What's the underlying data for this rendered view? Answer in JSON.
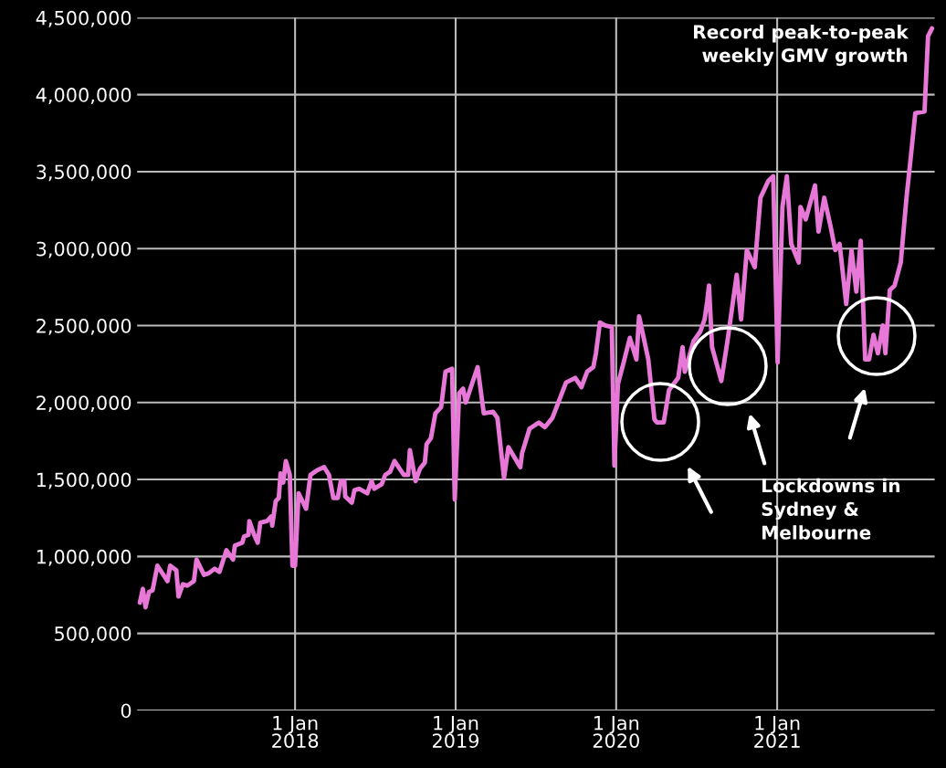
{
  "chart_data": {
    "type": "line",
    "x": [
      "2017-01-13",
      "2017-01-20",
      "2017-01-26",
      "2017-02-03",
      "2017-02-11",
      "2017-02-22",
      "2017-03-17",
      "2017-03-23",
      "2017-04-06",
      "2017-04-11",
      "2017-04-21",
      "2017-05-01",
      "2017-05-16",
      "2017-05-22",
      "2017-06-08",
      "2017-06-18",
      "2017-07-02",
      "2017-07-13",
      "2017-07-29",
      "2017-08-13",
      "2017-08-17",
      "2017-09-03",
      "2017-09-07",
      "2017-09-17",
      "2017-09-19",
      "2017-09-30",
      "2017-10-08",
      "2017-10-14",
      "2017-10-29",
      "2017-11-08",
      "2017-11-10",
      "2017-11-18",
      "2017-11-25",
      "2017-11-29",
      "2017-12-05",
      "2017-12-11",
      "2017-12-20",
      "2017-12-26",
      "2018-01-01",
      "2018-01-09",
      "2018-01-16",
      "2018-01-26",
      "2018-02-05",
      "2018-02-20",
      "2018-03-08",
      "2018-03-19",
      "2018-03-29",
      "2018-04-08",
      "2018-04-15",
      "2018-04-23",
      "2018-04-25",
      "2018-05-10",
      "2018-05-16",
      "2018-05-26",
      "2018-06-14",
      "2018-06-24",
      "2018-06-30",
      "2018-07-17",
      "2018-07-25",
      "2018-08-05",
      "2018-08-15",
      "2018-09-05",
      "2018-09-15",
      "2018-09-19",
      "2018-10-02",
      "2018-10-12",
      "2018-10-23",
      "2018-10-27",
      "2018-11-06",
      "2018-11-16",
      "2018-11-29",
      "2018-12-09",
      "2018-12-24",
      "2018-12-30",
      "2019-01-09",
      "2019-01-18",
      "2019-01-24",
      "2019-02-20",
      "2019-03-06",
      "2019-03-27",
      "2019-04-06",
      "2019-04-21",
      "2019-05-01",
      "2019-05-28",
      "2019-06-01",
      "2019-06-18",
      "2019-07-09",
      "2019-07-23",
      "2019-08-09",
      "2019-09-09",
      "2019-09-30",
      "2019-10-14",
      "2019-10-27",
      "2019-11-10",
      "2019-11-16",
      "2019-11-25",
      "2019-12-07",
      "2019-12-22",
      "2019-12-28",
      "2020-01-05",
      "2020-01-18",
      "2020-02-01",
      "2020-02-16",
      "2020-02-22",
      "2020-03-14",
      "2020-03-28",
      "2020-04-03",
      "2020-04-18",
      "2020-04-30",
      "2020-05-21",
      "2020-05-31",
      "2020-06-05",
      "2020-06-25",
      "2020-07-10",
      "2020-07-20",
      "2020-07-26",
      "2020-07-30",
      "2020-08-06",
      "2020-08-27",
      "2020-09-10",
      "2020-10-01",
      "2020-10-11",
      "2020-10-24",
      "2020-11-11",
      "2020-11-24",
      "2020-12-12",
      "2020-12-23",
      "2021-01-02",
      "2021-01-13",
      "2021-01-23",
      "2021-02-02",
      "2021-02-19",
      "2021-02-23",
      "2021-03-07",
      "2021-03-28",
      "2021-04-05",
      "2021-04-18",
      "2021-05-02",
      "2021-05-13",
      "2021-05-23",
      "2021-06-07",
      "2021-06-19",
      "2021-06-30",
      "2021-07-10",
      "2021-07-20",
      "2021-07-29",
      "2021-08-08",
      "2021-08-18",
      "2021-08-29",
      "2021-09-04",
      "2021-09-14",
      "2021-09-25",
      "2021-10-09",
      "2021-10-22",
      "2021-11-01",
      "2021-11-11",
      "2021-12-02",
      "2021-12-10",
      "2021-12-19"
    ],
    "series": [
      {
        "color": "#e878d8",
        "values": [
          700000,
          790000,
          670000,
          770000,
          780000,
          940000,
          840000,
          940000,
          910000,
          740000,
          820000,
          810000,
          840000,
          980000,
          880000,
          890000,
          920000,
          900000,
          1040000,
          980000,
          1070000,
          1090000,
          1130000,
          1140000,
          1230000,
          1140000,
          1090000,
          1220000,
          1230000,
          1260000,
          1200000,
          1360000,
          1380000,
          1540000,
          1480000,
          1620000,
          1530000,
          940000,
          940000,
          1410000,
          1370000,
          1310000,
          1530000,
          1560000,
          1580000,
          1530000,
          1380000,
          1380000,
          1490000,
          1490000,
          1390000,
          1350000,
          1430000,
          1440000,
          1410000,
          1490000,
          1440000,
          1470000,
          1530000,
          1550000,
          1620000,
          1530000,
          1530000,
          1690000,
          1490000,
          1570000,
          1610000,
          1730000,
          1770000,
          1930000,
          1970000,
          2200000,
          2220000,
          1370000,
          2060000,
          2090000,
          2000000,
          2230000,
          1930000,
          1940000,
          1900000,
          1510000,
          1710000,
          1580000,
          1670000,
          1830000,
          1870000,
          1840000,
          1900000,
          2130000,
          2160000,
          2100000,
          2200000,
          2230000,
          2320000,
          2520000,
          2500000,
          2490000,
          1590000,
          2120000,
          2260000,
          2420000,
          2280000,
          2560000,
          2280000,
          1890000,
          1870000,
          1870000,
          2080000,
          2160000,
          2360000,
          2200000,
          2400000,
          2460000,
          2540000,
          2660000,
          2760000,
          2360000,
          2140000,
          2400000,
          2830000,
          2540000,
          2990000,
          2880000,
          3330000,
          3440000,
          3470000,
          2260000,
          3270000,
          3470000,
          3030000,
          2910000,
          3270000,
          3190000,
          3410000,
          3110000,
          3330000,
          3150000,
          2990000,
          3030000,
          2640000,
          2990000,
          2720000,
          3050000,
          2280000,
          2280000,
          2440000,
          2320000,
          2500000,
          2320000,
          2730000,
          2760000,
          2910000,
          3330000,
          3600000,
          3880000,
          3890000,
          4380000,
          4430000
        ]
      }
    ],
    "xlim": [
      "2017-01-07",
      "2021-12-25"
    ],
    "xticks": [
      {
        "value": "2018-01-01",
        "label": "1 Jan\n2018"
      },
      {
        "value": "2019-01-01",
        "label": "1 Jan\n2019"
      },
      {
        "value": "2020-01-01",
        "label": "1 Jan\n2020"
      },
      {
        "value": "2021-01-01",
        "label": "1 Jan\n2021"
      }
    ],
    "ylim": [
      0,
      4500000
    ],
    "yticks": [
      0,
      {
        "value": 500000,
        "label": "500,000"
      },
      {
        "value": 1000000,
        "label": "1,000,000"
      },
      {
        "value": 1500000,
        "label": "1,500,000"
      },
      {
        "value": 2000000,
        "label": "2,000,000"
      },
      {
        "value": 2500000,
        "label": "2,500,000"
      },
      {
        "value": 3000000,
        "label": "3,000,000"
      },
      {
        "value": 3500000,
        "label": "3,500,000"
      },
      {
        "value": 4000000,
        "label": "4,000,000"
      },
      {
        "value": 4500000,
        "label": "4,500,000"
      }
    ],
    "grid": true,
    "line_style": "solid",
    "annotations": [
      "Record peak-to-peak\nweekly GMV growth",
      "Lockdowns in\nSydney &\nMelbourne"
    ]
  }
}
